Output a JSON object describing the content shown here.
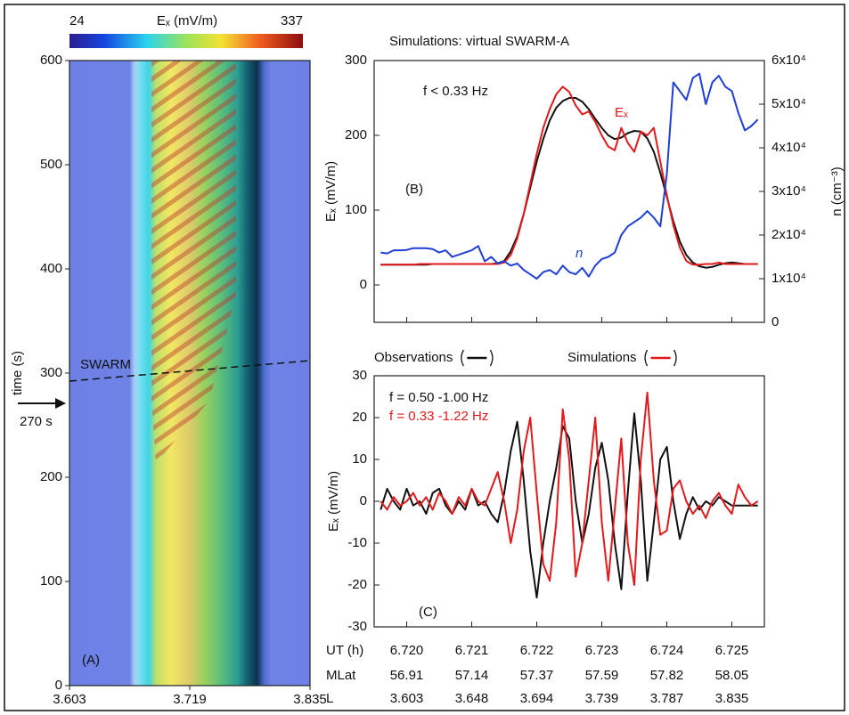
{
  "chart_data": [
    {
      "type": "heatmap",
      "colorbar": {
        "label": "Eₓ (mV/m)",
        "min": 24,
        "max": 337
      },
      "ylabel": "time (s)",
      "ylim": [
        0,
        600
      ],
      "yticks": [
        0,
        100,
        200,
        300,
        400,
        500,
        600
      ],
      "xlim": [
        3.603,
        3.835
      ],
      "xticks": [
        3.603,
        3.719,
        3.835
      ],
      "annotations": [
        "SWARM",
        "270 s",
        "(A)"
      ]
    },
    {
      "type": "line",
      "title": "Simulations:  virtual SWARM-A",
      "ylabel": "Eₓ (mV/m)",
      "y2label": "n (cm⁻³)",
      "xlim": [
        6.7195,
        6.7255
      ],
      "ylim": [
        -50,
        300
      ],
      "yticks": [
        0,
        100,
        200,
        300
      ],
      "y2lim": [
        0,
        60000
      ],
      "y2ticks": [
        0,
        {
          "value": 10000,
          "label": "1x10⁴"
        },
        {
          "value": 20000,
          "label": "2x10⁴"
        },
        {
          "value": 30000,
          "label": "3x10⁴"
        },
        {
          "value": 40000,
          "label": "4x10⁴"
        },
        {
          "value": 50000,
          "label": "5x10⁴"
        },
        {
          "value": 60000,
          "label": "6x10⁴"
        }
      ],
      "annotations": [
        "f < 0.33 Hz",
        "(B)"
      ],
      "x": [
        6.7196,
        6.7197,
        6.7198,
        6.7199,
        6.72,
        6.7201,
        6.7202,
        6.7203,
        6.7204,
        6.7205,
        6.7206,
        6.7207,
        6.7208,
        6.7209,
        6.721,
        6.7211,
        6.7212,
        6.7213,
        6.7214,
        6.7215,
        6.7216,
        6.7217,
        6.7218,
        6.7219,
        6.722,
        6.7221,
        6.7222,
        6.7223,
        6.7224,
        6.7225,
        6.7226,
        6.7227,
        6.7228,
        6.7229,
        6.723,
        6.7231,
        6.7232,
        6.7233,
        6.7234,
        6.7235,
        6.7236,
        6.7237,
        6.7238,
        6.7239,
        6.724,
        6.7241,
        6.7242,
        6.7243,
        6.7244,
        6.7245,
        6.7246,
        6.7247,
        6.7248,
        6.7249,
        6.725,
        6.7251,
        6.7252,
        6.7253,
        6.7254
      ],
      "series": [
        {
          "color": "#111111",
          "values": [
            27,
            27,
            27,
            27,
            27,
            27,
            27,
            27,
            28,
            28,
            28,
            28,
            28,
            28,
            28,
            28,
            28,
            28,
            29,
            32,
            45,
            65,
            95,
            130,
            165,
            195,
            220,
            237,
            246,
            250,
            250,
            245,
            235,
            222,
            210,
            200,
            195,
            197,
            203,
            206,
            205,
            196,
            178,
            150,
            118,
            85,
            58,
            40,
            30,
            25,
            23,
            24,
            27,
            29,
            30,
            29,
            28,
            28,
            28
          ]
        },
        {
          "name": "Eₓ",
          "color": "#e31a1c",
          "values": [
            27,
            27,
            27,
            27,
            27,
            27,
            28,
            28,
            28,
            28,
            28,
            28,
            28,
            28,
            28,
            28,
            28,
            28,
            28,
            30,
            40,
            62,
            95,
            135,
            175,
            210,
            235,
            255,
            265,
            258,
            240,
            228,
            232,
            218,
            200,
            185,
            180,
            210,
            190,
            178,
            205,
            200,
            210,
            165,
            120,
            80,
            50,
            32,
            27,
            27,
            28,
            28,
            30,
            28,
            28,
            28,
            28,
            28,
            28
          ]
        },
        {
          "name": "n",
          "color": "#1f3fd6",
          "axis": "y2",
          "values": [
            16000,
            15800,
            16500,
            16500,
            16600,
            17000,
            17000,
            17000,
            16800,
            16000,
            16500,
            15000,
            15500,
            16000,
            16500,
            17500,
            14000,
            15000,
            13500,
            14000,
            13000,
            13500,
            12000,
            11000,
            10000,
            11500,
            12000,
            11000,
            13000,
            11500,
            11000,
            12500,
            10500,
            13000,
            14500,
            15000,
            16000,
            20000,
            22000,
            23000,
            24000,
            25500,
            24000,
            22000,
            34000,
            55000,
            53000,
            51000,
            56000,
            57000,
            50000,
            55000,
            56500,
            54000,
            53000,
            48000,
            44000,
            45000,
            46500
          ]
        }
      ]
    },
    {
      "type": "line",
      "ylabel": "Eₓ (mV/m)",
      "xlim": [
        6.7195,
        6.7255
      ],
      "ylim": [
        -30,
        30
      ],
      "yticks": [
        -30,
        -20,
        -10,
        0,
        10,
        20,
        30
      ],
      "xlabel": "UT (h)",
      "xticks": [
        {
          "value": 6.72,
          "label": "6.720"
        },
        6.721,
        6.722,
        6.723,
        6.724,
        6.725
      ],
      "xtick_rows": [
        {
          "name": "MLat",
          "labels": [
            "56.91",
            "57.14",
            "57.37",
            "57.59",
            "57.82",
            "58.05"
          ]
        },
        {
          "name": "L",
          "labels": [
            "3.603",
            "3.648",
            "3.694",
            "3.739",
            "3.787",
            "3.835"
          ]
        }
      ],
      "annotations": [
        {
          "text": "f = 0.50 -1.00 Hz",
          "color": "#111111"
        },
        {
          "text": "f = 0.33 -1.22 Hz",
          "color": "#e31a1c"
        },
        {
          "text": "(C)",
          "color": "#111111"
        }
      ],
      "x": [
        6.7196,
        6.7197,
        6.7198,
        6.7199,
        6.72,
        6.7201,
        6.7202,
        6.7203,
        6.7204,
        6.7205,
        6.7206,
        6.7207,
        6.7208,
        6.7209,
        6.721,
        6.7211,
        6.7212,
        6.7213,
        6.7214,
        6.7215,
        6.7216,
        6.7217,
        6.7218,
        6.7219,
        6.722,
        6.7221,
        6.7222,
        6.7223,
        6.7224,
        6.7225,
        6.7226,
        6.7227,
        6.7228,
        6.7229,
        6.723,
        6.7231,
        6.7232,
        6.7233,
        6.7234,
        6.7235,
        6.7236,
        6.7237,
        6.7238,
        6.7239,
        6.724,
        6.7241,
        6.7242,
        6.7243,
        6.7244,
        6.7245,
        6.7246,
        6.7247,
        6.7248,
        6.7249,
        6.725,
        6.7251,
        6.7252,
        6.7253,
        6.7254
      ],
      "series": [
        {
          "name": "Observations",
          "color": "#111111",
          "values": [
            -2,
            3,
            0,
            -2,
            3,
            -1,
            0,
            -3,
            2,
            3,
            -1,
            -3,
            0,
            -2,
            3,
            -1,
            0,
            -3,
            -5,
            2,
            12,
            19,
            5,
            -12,
            -23,
            -10,
            0,
            8,
            18,
            15,
            0,
            -10,
            -3,
            8,
            14,
            5,
            -10,
            -21,
            2,
            21,
            5,
            -19,
            -5,
            10,
            13,
            0,
            -9,
            -3,
            1,
            -2,
            0,
            -1,
            1,
            0,
            -1,
            -1,
            -1,
            -1,
            -1
          ]
        },
        {
          "name": "Simulations",
          "color": "#e31a1c",
          "values": [
            0,
            -2,
            1,
            -1,
            0,
            2,
            -1,
            1,
            -2,
            2,
            0,
            -3,
            1,
            -1,
            3,
            0,
            -1,
            3,
            7,
            0,
            -10,
            -2,
            12,
            20,
            2,
            -15,
            -19,
            -5,
            22,
            10,
            -18,
            -10,
            5,
            20,
            -5,
            -19,
            -2,
            15,
            -10,
            -20,
            10,
            26,
            5,
            -8,
            -7,
            3,
            5,
            0,
            -3,
            -1,
            -4,
            0,
            2,
            -1,
            -3,
            4,
            1,
            -1,
            0
          ]
        }
      ]
    }
  ]
}
